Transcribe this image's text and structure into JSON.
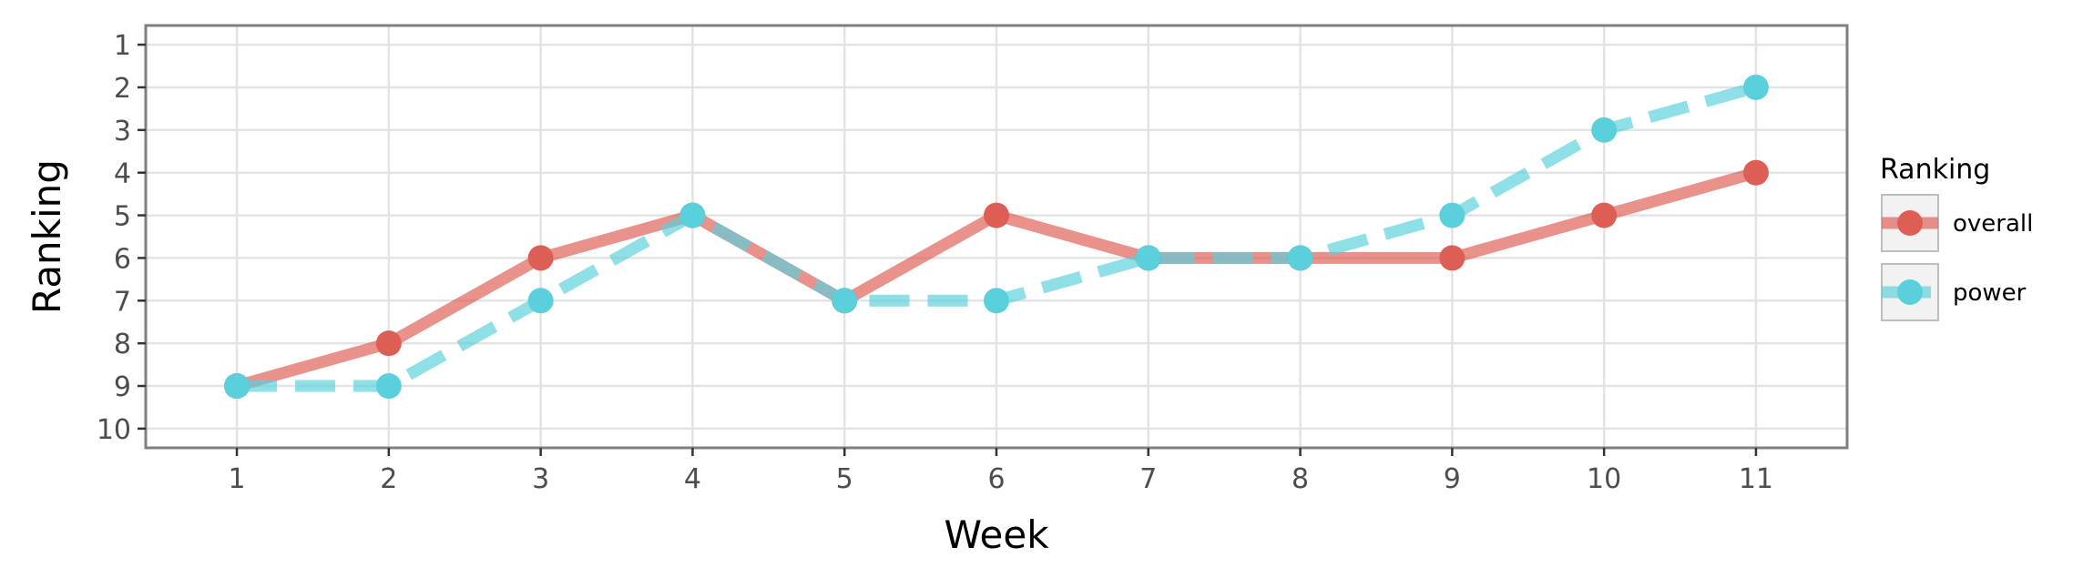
{
  "chart_data": {
    "type": "line",
    "title": "",
    "xlabel": "Week",
    "ylabel": "Ranking",
    "x": [
      1,
      2,
      3,
      4,
      5,
      6,
      7,
      8,
      9,
      10,
      11
    ],
    "x_ticks": [
      "1",
      "2",
      "3",
      "4",
      "5",
      "6",
      "7",
      "8",
      "9",
      "10",
      "11"
    ],
    "y_ticks": [
      "1",
      "2",
      "3",
      "4",
      "5",
      "6",
      "7",
      "8",
      "9",
      "10"
    ],
    "xlim": [
      0.4,
      11.6
    ],
    "ylim": [
      10.45,
      0.55
    ],
    "y_reversed": true,
    "grid": true,
    "legend": {
      "title": "Ranking",
      "position": "right"
    },
    "series": [
      {
        "name": "overall",
        "color": "#dd5e54",
        "line_style": "solid",
        "values": [
          9,
          8,
          6,
          5,
          7,
          5,
          6,
          6,
          6,
          5,
          4
        ]
      },
      {
        "name": "power",
        "color": "#5ad0dc",
        "line_style": "dashed",
        "values": [
          9,
          9,
          7,
          5,
          7,
          7,
          6,
          6,
          5,
          3,
          2
        ]
      }
    ]
  }
}
